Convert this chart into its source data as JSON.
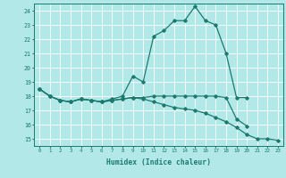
{
  "xlabel": "Humidex (Indice chaleur)",
  "bg_color": "#b3e8e8",
  "line_color": "#1a7a6e",
  "grid_color": "#ffffff",
  "xlim": [
    -0.5,
    23.5
  ],
  "ylim": [
    14.5,
    24.5
  ],
  "xticks": [
    0,
    1,
    2,
    3,
    4,
    5,
    6,
    7,
    8,
    9,
    10,
    11,
    12,
    13,
    14,
    15,
    16,
    17,
    18,
    19,
    20,
    21,
    22,
    23
  ],
  "yticks": [
    15,
    16,
    17,
    18,
    19,
    20,
    21,
    22,
    23,
    24
  ],
  "series1_x": [
    0,
    1,
    2,
    3,
    4,
    5,
    6,
    7,
    8,
    9,
    10,
    11,
    12,
    13,
    14,
    15,
    16,
    17,
    18,
    19,
    20
  ],
  "series1_y": [
    18.5,
    18.0,
    17.7,
    17.6,
    17.8,
    17.7,
    17.6,
    17.8,
    18.0,
    19.4,
    19.0,
    22.2,
    22.6,
    23.3,
    23.3,
    24.3,
    23.3,
    23.0,
    21.0,
    17.9,
    17.9
  ],
  "series2_x": [
    0,
    1,
    2,
    3,
    4,
    5,
    6,
    7,
    8,
    9,
    10,
    11,
    12,
    13,
    14,
    15,
    16,
    17,
    18,
    19,
    20
  ],
  "series2_y": [
    18.5,
    18.0,
    17.7,
    17.6,
    17.8,
    17.7,
    17.6,
    17.7,
    17.8,
    17.9,
    17.9,
    18.0,
    18.0,
    18.0,
    18.0,
    18.0,
    18.0,
    18.0,
    17.9,
    16.4,
    15.9
  ],
  "series3_x": [
    0,
    1,
    2,
    3,
    4,
    5,
    6,
    7,
    8,
    9,
    10,
    11,
    12,
    13,
    14,
    15,
    16,
    17,
    18,
    19,
    20,
    21,
    22,
    23
  ],
  "series3_y": [
    18.5,
    18.0,
    17.7,
    17.6,
    17.8,
    17.7,
    17.6,
    17.7,
    17.8,
    17.9,
    17.8,
    17.6,
    17.4,
    17.2,
    17.1,
    17.0,
    16.8,
    16.5,
    16.2,
    15.8,
    15.3,
    15.0,
    15.0,
    14.9
  ],
  "figsize": [
    3.2,
    2.0
  ],
  "dpi": 100
}
